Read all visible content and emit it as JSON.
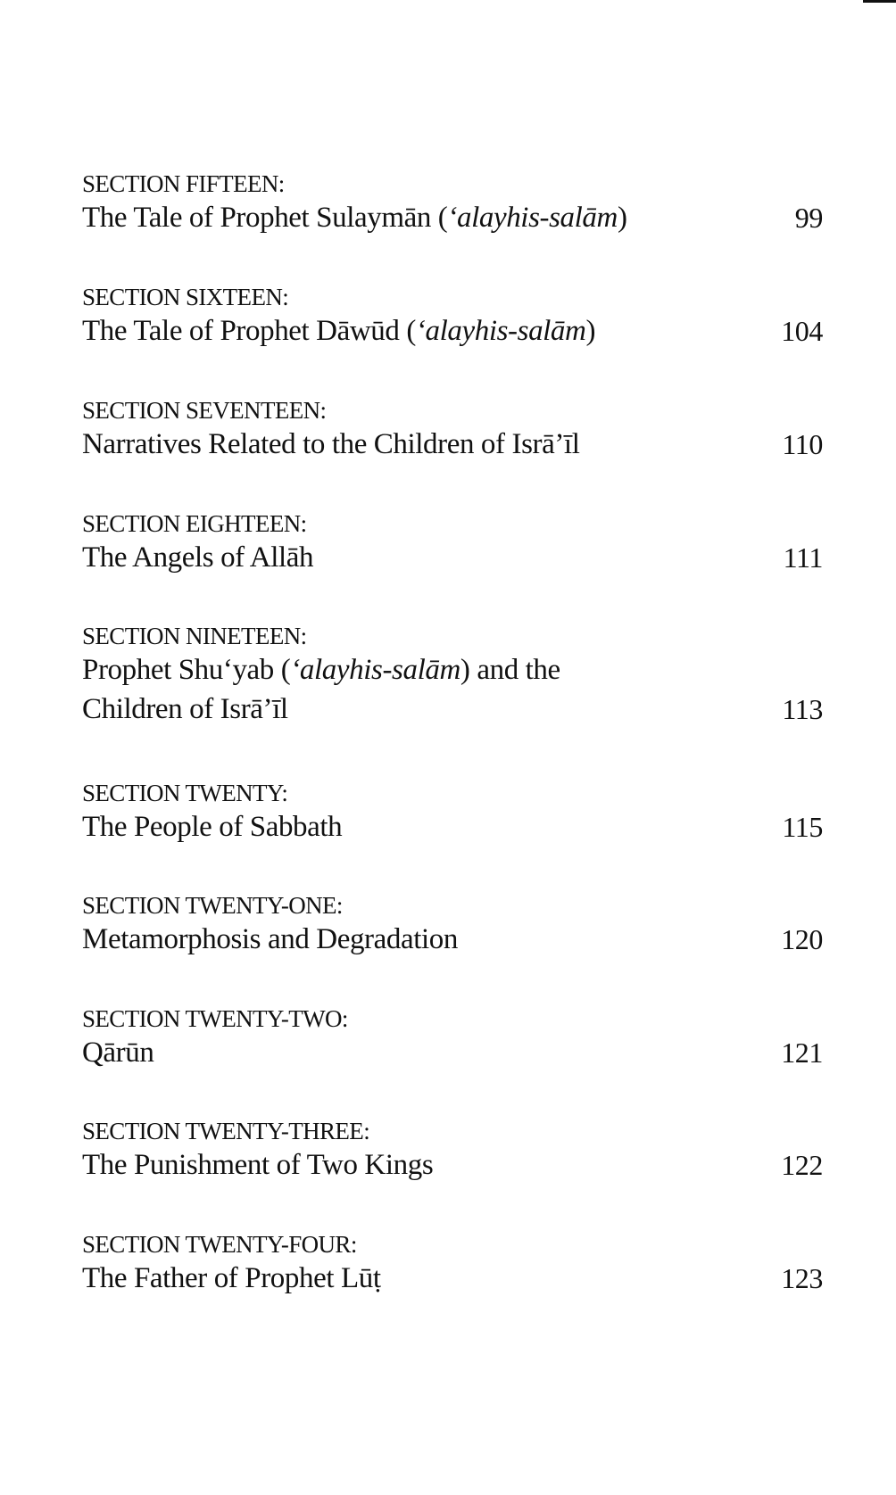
{
  "entries": [
    {
      "heading": "SECTION FIFTEEN:",
      "title_lines": [
        [
          "The Tale of Prophet Sulaymān (",
          "‘alayhis-salām",
          ")"
        ]
      ],
      "page": "99"
    },
    {
      "heading": "SECTION SIXTEEN:",
      "title_lines": [
        [
          "The Tale of Prophet Dāwūd (",
          "‘alayhis-salām",
          ")"
        ]
      ],
      "page": "104"
    },
    {
      "heading": "SECTION SEVENTEEN:",
      "title_lines": [
        [
          "Narratives Related to the Children of Isrā’īl",
          "",
          ""
        ]
      ],
      "page": "110"
    },
    {
      "heading": "SECTION EIGHTEEN:",
      "title_lines": [
        [
          "The Angels of Allāh",
          "",
          ""
        ]
      ],
      "page": "111"
    },
    {
      "heading": "SECTION NINETEEN:",
      "title_lines": [
        [
          "Prophet Shu‘yab (",
          "‘alayhis-salām",
          ") and the"
        ],
        [
          "Children of Isrā’īl",
          "",
          ""
        ]
      ],
      "page": "113"
    },
    {
      "heading": "SECTION TWENTY:",
      "title_lines": [
        [
          "The People of Sabbath",
          "",
          ""
        ]
      ],
      "page": "115"
    },
    {
      "heading": "SECTION TWENTY-ONE:",
      "title_lines": [
        [
          "Metamorphosis and Degradation",
          "",
          ""
        ]
      ],
      "page": "120"
    },
    {
      "heading": "SECTION TWENTY-TWO:",
      "title_lines": [
        [
          "Qārūn",
          "",
          ""
        ]
      ],
      "page": "121"
    },
    {
      "heading": "SECTION TWENTY-THREE:",
      "title_lines": [
        [
          "The Punishment of Two Kings",
          "",
          ""
        ]
      ],
      "page": "122"
    },
    {
      "heading": "SECTION TWENTY-FOUR:",
      "title_lines": [
        [
          "The Father of Prophet Lūṭ",
          "",
          ""
        ]
      ],
      "page": "123"
    }
  ]
}
